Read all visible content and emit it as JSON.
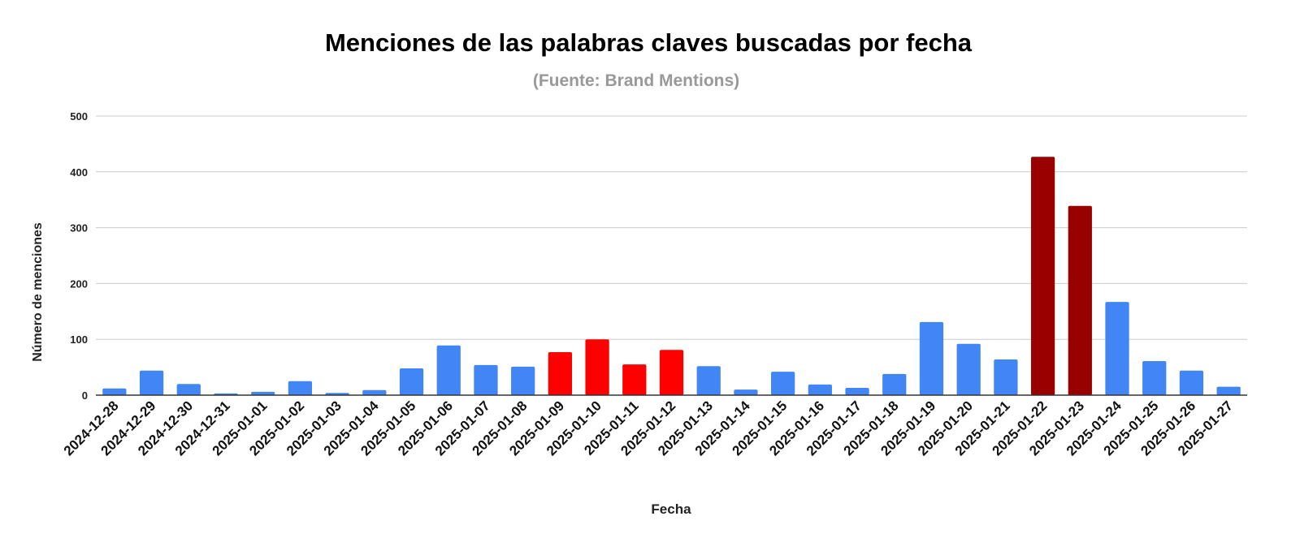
{
  "chart_data": {
    "type": "bar",
    "title": "Menciones de las palabras claves buscadas por fecha",
    "subtitle": "(Fuente: Brand Mentions)",
    "x_label": "Fecha",
    "y_label": "Número de menciones",
    "categories": [
      "2024-12-28",
      "2024-12-29",
      "2024-12-30",
      "2024-12-31",
      "2025-01-01",
      "2025-01-02",
      "2025-01-03",
      "2025-01-04",
      "2025-01-05",
      "2025-01-06",
      "2025-01-07",
      "2025-01-08",
      "2025-01-09",
      "2025-01-10",
      "2025-01-11",
      "2025-01-12",
      "2025-01-13",
      "2025-01-14",
      "2025-01-15",
      "2025-01-16",
      "2025-01-17",
      "2025-01-18",
      "2025-01-19",
      "2025-01-20",
      "2025-01-21",
      "2025-01-22",
      "2025-01-23",
      "2025-01-24",
      "2025-01-25",
      "2025-01-26",
      "2025-01-27"
    ],
    "values": [
      12,
      44,
      20,
      3,
      6,
      25,
      4,
      9,
      48,
      89,
      54,
      51,
      77,
      100,
      55,
      81,
      52,
      10,
      42,
      19,
      13,
      38,
      131,
      92,
      64,
      427,
      339,
      167,
      61,
      44,
      15
    ],
    "colors": [
      "#4285f4",
      "#4285f4",
      "#4285f4",
      "#4285f4",
      "#4285f4",
      "#4285f4",
      "#4285f4",
      "#4285f4",
      "#4285f4",
      "#4285f4",
      "#4285f4",
      "#4285f4",
      "#ff0000",
      "#ff0000",
      "#ff0000",
      "#ff0000",
      "#4285f4",
      "#4285f4",
      "#4285f4",
      "#4285f4",
      "#4285f4",
      "#4285f4",
      "#4285f4",
      "#4285f4",
      "#4285f4",
      "#990000",
      "#990000",
      "#4285f4",
      "#4285f4",
      "#4285f4",
      "#4285f4"
    ],
    "ylim": [
      0,
      500
    ],
    "yticks": [
      0,
      100,
      200,
      300,
      400,
      500
    ],
    "grid": true
  }
}
